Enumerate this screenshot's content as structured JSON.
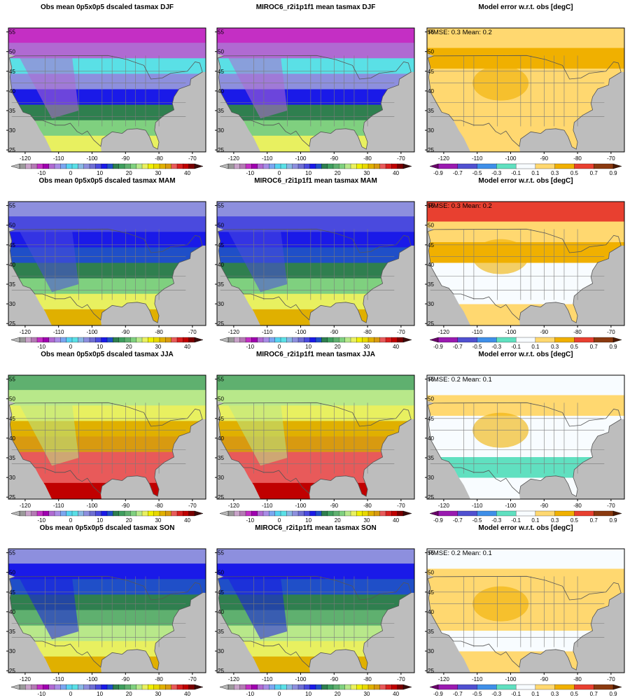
{
  "rows": [
    {
      "season": "DJF",
      "panels": [
        {
          "title": "Obs mean 0p5x0p5 dscaled tasmax DJF",
          "kind": "obs"
        },
        {
          "title": "MIROC6_r2i1p1f1 mean tasmax DJF",
          "kind": "model"
        },
        {
          "title": "Model error w.r.t. obs [degC]",
          "kind": "error",
          "annotation": "RMSE: 0.3  Mean: 0.2"
        }
      ]
    },
    {
      "season": "MAM",
      "panels": [
        {
          "title": "Obs mean 0p5x0p5 dscaled tasmax MAM",
          "kind": "obs"
        },
        {
          "title": "MIROC6_r2i1p1f1 mean tasmax MAM",
          "kind": "model"
        },
        {
          "title": "Model error w.r.t. obs [degC]",
          "kind": "error",
          "annotation": "RMSE: 0.3  Mean: 0.2"
        }
      ]
    },
    {
      "season": "JJA",
      "panels": [
        {
          "title": "Obs mean 0p5x0p5 dscaled tasmax JJA",
          "kind": "obs"
        },
        {
          "title": "MIROC6_r2i1p1f1 mean tasmax JJA",
          "kind": "model"
        },
        {
          "title": "Model error w.r.t. obs [degC]",
          "kind": "error",
          "annotation": "RMSE: 0.2  Mean: 0.1"
        }
      ]
    },
    {
      "season": "SON",
      "panels": [
        {
          "title": "Obs mean 0p5x0p5 dscaled tasmax SON",
          "kind": "obs"
        },
        {
          "title": "MIROC6_r2i1p1f1 mean tasmax SON",
          "kind": "model"
        },
        {
          "title": "Model error w.r.t. obs [degC]",
          "kind": "error",
          "annotation": "RMSE: 0.2  Mean: 0.1"
        }
      ]
    }
  ],
  "axes": {
    "lon_range": [
      -125,
      -66
    ],
    "lat_range": [
      24.5,
      56
    ],
    "x_ticks": [
      "-120",
      "-110",
      "-100",
      "-90",
      "-80",
      "-70"
    ],
    "x_tick_values": [
      -120,
      -110,
      -100,
      -90,
      -80,
      -70
    ],
    "y_ticks": [
      "55",
      "50",
      "45",
      "40",
      "35",
      "30",
      "25"
    ],
    "y_tick_values": [
      55,
      50,
      45,
      40,
      35,
      30,
      25
    ]
  },
  "temp_colorbar": {
    "labels": [
      "-10",
      "0",
      "10",
      "20",
      "30",
      "40"
    ],
    "label_values": [
      -10,
      0,
      10,
      20,
      30,
      40
    ],
    "range": [
      -17.5,
      42.5
    ],
    "under_color": "#b8b8b8",
    "over_color": "#3a0c0c",
    "colors": [
      "#9a9a9a",
      "#c9a3c9",
      "#b47ab4",
      "#c42fc4",
      "#a000b0",
      "#b06ad2",
      "#a98ce6",
      "#7ba6f0",
      "#56d3f0",
      "#5ae0e6",
      "#8ab8e4",
      "#8d8fde",
      "#6f6fd2",
      "#4a4ade",
      "#1a1ae8",
      "#1f4fc8",
      "#2f7f4f",
      "#3f9f5f",
      "#5fb06f",
      "#7fd07f",
      "#b8e88a",
      "#e8f060",
      "#f0f000",
      "#e8d800",
      "#e0b000",
      "#d89a10",
      "#e85a5a",
      "#d82020",
      "#c00000",
      "#7a0000"
    ]
  },
  "error_colorbar": {
    "labels": [
      "-0.9",
      "-0.7",
      "-0.5",
      "-0.3",
      "-0.1",
      "0.1",
      "0.3",
      "0.5",
      "0.7",
      "0.9"
    ],
    "label_values": [
      -0.9,
      -0.7,
      -0.5,
      -0.3,
      -0.1,
      0.1,
      0.3,
      0.5,
      0.7,
      0.9
    ],
    "range": [
      -0.9,
      0.9
    ],
    "under_color": "#6a006a",
    "over_color": "#4a1a00",
    "colors": [
      "#9a1ab0",
      "#5050d0",
      "#3f8fe8",
      "#60e0c0",
      "#f8fcff",
      "#ffd870",
      "#f0b000",
      "#e84030",
      "#8b3a10"
    ]
  },
  "colors": {
    "ocean": "#bdbdbd",
    "border": "#7a7a7a",
    "frame": "#000000"
  }
}
